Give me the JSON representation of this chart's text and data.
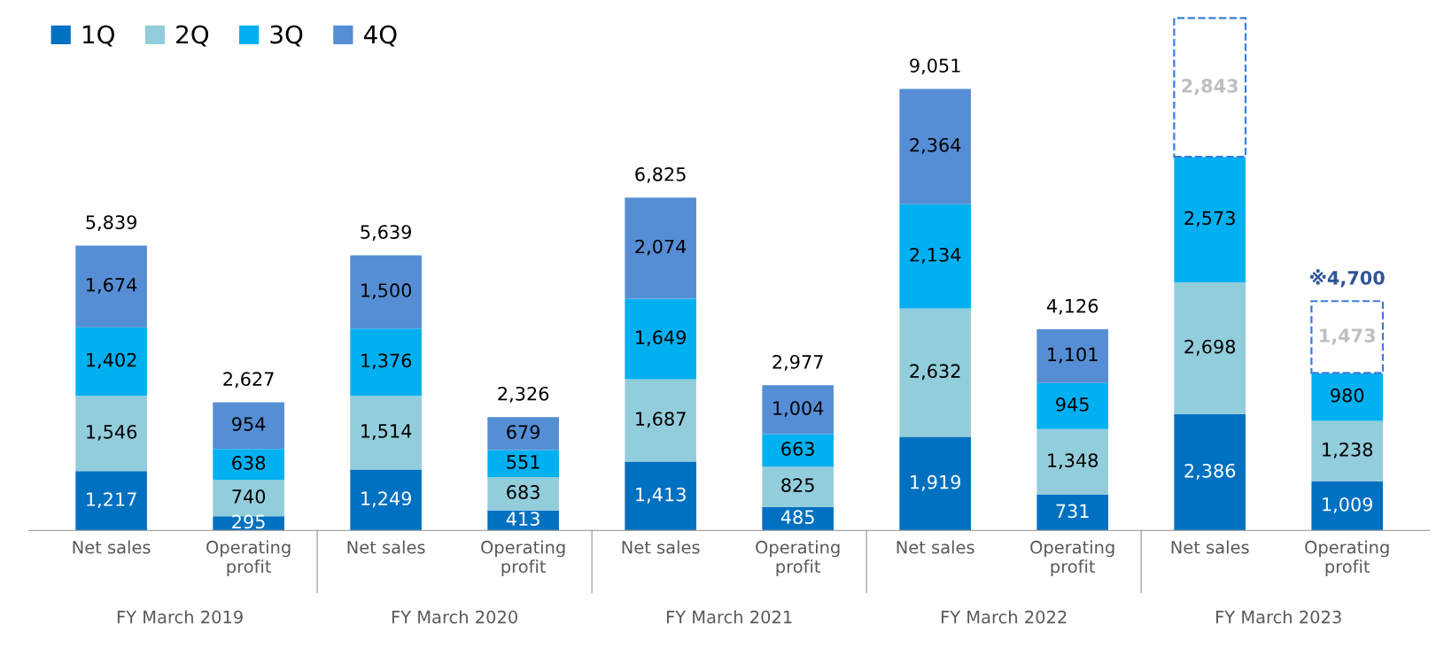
{
  "chart_data": {
    "type": "bar",
    "stacked": true,
    "legend": "top left",
    "grid": false,
    "categories": [
      "Net sales",
      "Operating\nprofit",
      "Net sales",
      "Operating\nprofit",
      "Net sales",
      "Operating\nprofit",
      "Net sales",
      "Operating\nprofit",
      "Net sales",
      "Operating\nprofit"
    ],
    "series": [
      {
        "name": "1Q",
        "color": "#0070c0",
        "values": [
          1217,
          295,
          1249,
          413,
          1413,
          485,
          1919,
          731,
          2386,
          1009
        ],
        "value_labels": [
          "1,217",
          "295",
          "1,249",
          "413",
          "1,413",
          "485",
          "1,919",
          "731",
          "2,386",
          "1,009"
        ]
      },
      {
        "name": "2Q",
        "color": "#92cddc",
        "values": [
          1546,
          740,
          1514,
          683,
          1687,
          825,
          2632,
          1348,
          2698,
          1238
        ],
        "value_labels": [
          "1,546",
          "740",
          "1,514",
          "683",
          "1,687",
          "825",
          "2,632",
          "1,348",
          "2,698",
          "1,238"
        ]
      },
      {
        "name": "3Q",
        "color": "#00b0f0",
        "values": [
          1402,
          638,
          1376,
          551,
          1649,
          663,
          2134,
          945,
          2573,
          980
        ],
        "value_labels": [
          "1,402",
          "638",
          "1,376",
          "551",
          "1,649",
          "663",
          "2,134",
          "945",
          "2,573",
          "980"
        ]
      },
      {
        "name": "4Q",
        "color": "#558ed5",
        "values": [
          1674,
          954,
          1500,
          679,
          2074,
          1004,
          2364,
          1101,
          null,
          null
        ],
        "value_labels": [
          "1,674",
          "954",
          "1,500",
          "679",
          "2,074",
          "1,004",
          "2,364",
          "1,101",
          null,
          null
        ]
      },
      {
        "color": "#ffffff",
        "line_style": "dashed",
        "values": [
          null,
          null,
          null,
          null,
          null,
          null,
          null,
          null,
          2843,
          1473
        ],
        "value_labels": [
          null,
          null,
          null,
          null,
          null,
          null,
          null,
          null,
          "2,843",
          "1,473"
        ]
      }
    ],
    "totals": [
      "5,839",
      "2,627",
      "5,639",
      "2,326",
      "6,825",
      "2,977",
      "9,051",
      "4,126",
      null,
      "※4,700"
    ],
    "annotations": [
      "FY March 2019",
      "FY March 2020",
      "FY March 2021",
      "FY March 2022",
      "FY March 2023"
    ]
  }
}
